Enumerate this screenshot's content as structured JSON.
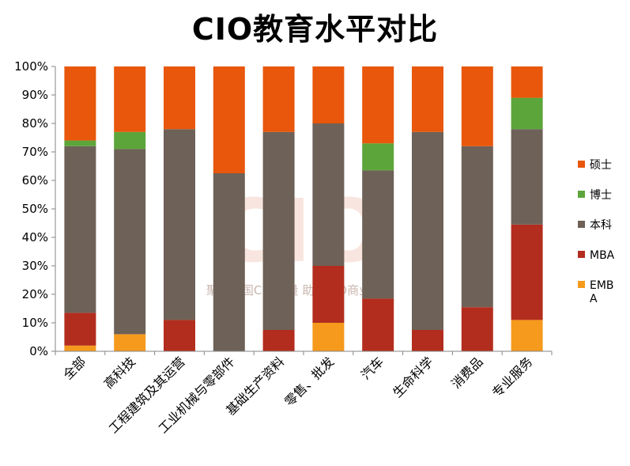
{
  "chart_data": {
    "type": "bar",
    "stacked": true,
    "percent": true,
    "title": "CIO教育水平对比",
    "categories": [
      "全部",
      "高科技",
      "工程建筑及其运营",
      "工业机械与零部件",
      "基础生产资料",
      "零售、批发",
      "汽车",
      "生命科学",
      "消费品",
      "专业服务"
    ],
    "series": [
      {
        "name": "EMBA",
        "color": "#f59a1c",
        "values": [
          2,
          6,
          0,
          0,
          0,
          10,
          0,
          0,
          0,
          11
        ]
      },
      {
        "name": "MBA",
        "color": "#b32d1e",
        "values": [
          11.5,
          0,
          11,
          0,
          7.5,
          20,
          18.5,
          7.5,
          15.5,
          33.5
        ]
      },
      {
        "name": "本科",
        "color": "#6e6157",
        "values": [
          58.5,
          65,
          67,
          62.5,
          69.5,
          50,
          45,
          69.5,
          56.5,
          33.5
        ]
      },
      {
        "name": "博士",
        "color": "#5ca53a",
        "values": [
          2,
          6,
          0,
          0,
          0,
          0,
          9.5,
          0,
          0,
          11
        ]
      },
      {
        "name": "硕士",
        "color": "#e8570c",
        "values": [
          26,
          23,
          22,
          37.5,
          23,
          20,
          27,
          23,
          28,
          11
        ]
      }
    ],
    "legend_order": [
      "硕士",
      "博士",
      "本科",
      "MBA",
      "EMBA"
    ],
    "legend_position": "right",
    "ylim": [
      0,
      100
    ],
    "yticks": [
      "0%",
      "10%",
      "20%",
      "30%",
      "40%",
      "50%",
      "60%",
      "70%",
      "80%",
      "90%",
      "100%"
    ],
    "grid": false
  },
  "watermark": {
    "letters": "CIO",
    "text": "聚合中国CIO力量   助推CIO商业价值",
    "color": "#e8a08c"
  }
}
